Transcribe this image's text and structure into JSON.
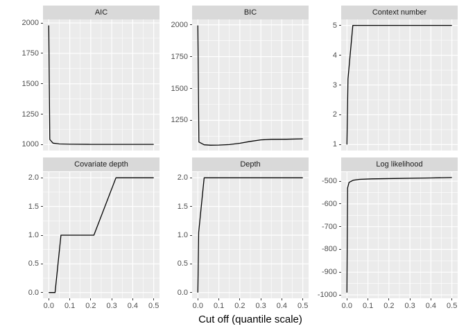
{
  "x_axis": {
    "label": "Cut off (quantile scale)",
    "domain": [
      -0.0275,
      0.5275
    ],
    "ticks": [
      0,
      0.1,
      0.2,
      0.3,
      0.4,
      0.5
    ],
    "tick_labels": [
      "0.0",
      "0.1",
      "0.2",
      "0.3",
      "0.4",
      "0.5"
    ],
    "minor": [
      0.05,
      0.15,
      0.25,
      0.35,
      0.45
    ]
  },
  "colors": {
    "panel_bg": "#ebebeb",
    "strip_bg": "#d9d9d9",
    "grid": "#ffffff",
    "line": "#000000",
    "tick": "#333333",
    "axis_text": "#4d4d4d",
    "strip_text": "#1a1a1a"
  },
  "chart_data": [
    {
      "type": "line",
      "title": "AIC",
      "ylabel": "",
      "y_domain": [
        951,
        2029
      ],
      "y_ticks": [
        1000,
        1250,
        1500,
        1750,
        2000
      ],
      "y_tick_labels": [
        "1000",
        "1250",
        "1500",
        "1750",
        "2000"
      ],
      "y_minor": [
        1125,
        1375,
        1625,
        1875
      ],
      "x": [
        0,
        0.005,
        0.02,
        0.05,
        0.1,
        0.2,
        0.35,
        0.5
      ],
      "y": [
        1980,
        1042,
        1012,
        1005,
        1003,
        1002,
        1002,
        1002
      ]
    },
    {
      "type": "line",
      "title": "BIC",
      "ylabel": "",
      "y_domain": [
        1013,
        2042
      ],
      "y_ticks": [
        1250,
        1500,
        1750,
        2000
      ],
      "y_tick_labels": [
        "1250",
        "1500",
        "1750",
        "2000"
      ],
      "y_minor": [
        1125,
        1375,
        1625,
        1875
      ],
      "x": [
        0,
        0.005,
        0.03,
        0.06,
        0.1,
        0.15,
        0.2,
        0.25,
        0.3,
        0.35,
        0.42,
        0.5
      ],
      "y": [
        1995,
        1080,
        1058,
        1055,
        1056,
        1060,
        1070,
        1085,
        1097,
        1101,
        1102,
        1105
      ]
    },
    {
      "type": "line",
      "title": "Context number",
      "ylabel": "",
      "y_domain": [
        0.8,
        5.2
      ],
      "y_ticks": [
        1,
        2,
        3,
        4,
        5
      ],
      "y_tick_labels": [
        "1",
        "2",
        "3",
        "4",
        "5"
      ],
      "y_minor": [
        1.5,
        2.5,
        3.5,
        4.5
      ],
      "x": [
        0,
        0.005,
        0.028,
        0.25,
        0.5
      ],
      "y": [
        1,
        3.2,
        5,
        5,
        5
      ]
    },
    {
      "type": "line",
      "title": "Covariate depth",
      "ylabel": "",
      "y_domain": [
        -0.1,
        2.1
      ],
      "y_ticks": [
        0,
        0.5,
        1,
        1.5,
        2
      ],
      "y_tick_labels": [
        "0.0",
        "0.5",
        "1.0",
        "1.5",
        "2.0"
      ],
      "y_minor": [
        0.25,
        0.75,
        1.25,
        1.75
      ],
      "x": [
        0,
        0.03,
        0.058,
        0.215,
        0.32,
        0.5
      ],
      "y": [
        0,
        0,
        1,
        1,
        2,
        2
      ]
    },
    {
      "type": "line",
      "title": "Depth",
      "ylabel": "",
      "y_domain": [
        -0.1,
        2.1
      ],
      "y_ticks": [
        0,
        0.5,
        1,
        1.5,
        2
      ],
      "y_tick_labels": [
        "0.0",
        "0.5",
        "1.0",
        "1.5",
        "2.0"
      ],
      "y_minor": [
        0.25,
        0.75,
        1.25,
        1.75
      ],
      "x": [
        0,
        0.004,
        0.03,
        0.25,
        0.5
      ],
      "y": [
        0,
        1.05,
        2,
        2,
        2
      ]
    },
    {
      "type": "line",
      "title": "Log likelihood",
      "ylabel": "",
      "y_domain": [
        -1015,
        -460
      ],
      "y_ticks": [
        -1000,
        -900,
        -800,
        -700,
        -600,
        -500
      ],
      "y_tick_labels": [
        "-1000",
        "-900",
        "-800",
        "-700",
        "-600",
        "-500"
      ],
      "y_minor": [
        -950,
        -850,
        -750,
        -650,
        -550
      ],
      "x": [
        0,
        0.003,
        0.01,
        0.03,
        0.06,
        0.12,
        0.25,
        0.4,
        0.5
      ],
      "y": [
        -990,
        -530,
        -505,
        -496,
        -492,
        -490,
        -488,
        -486,
        -484
      ]
    }
  ]
}
